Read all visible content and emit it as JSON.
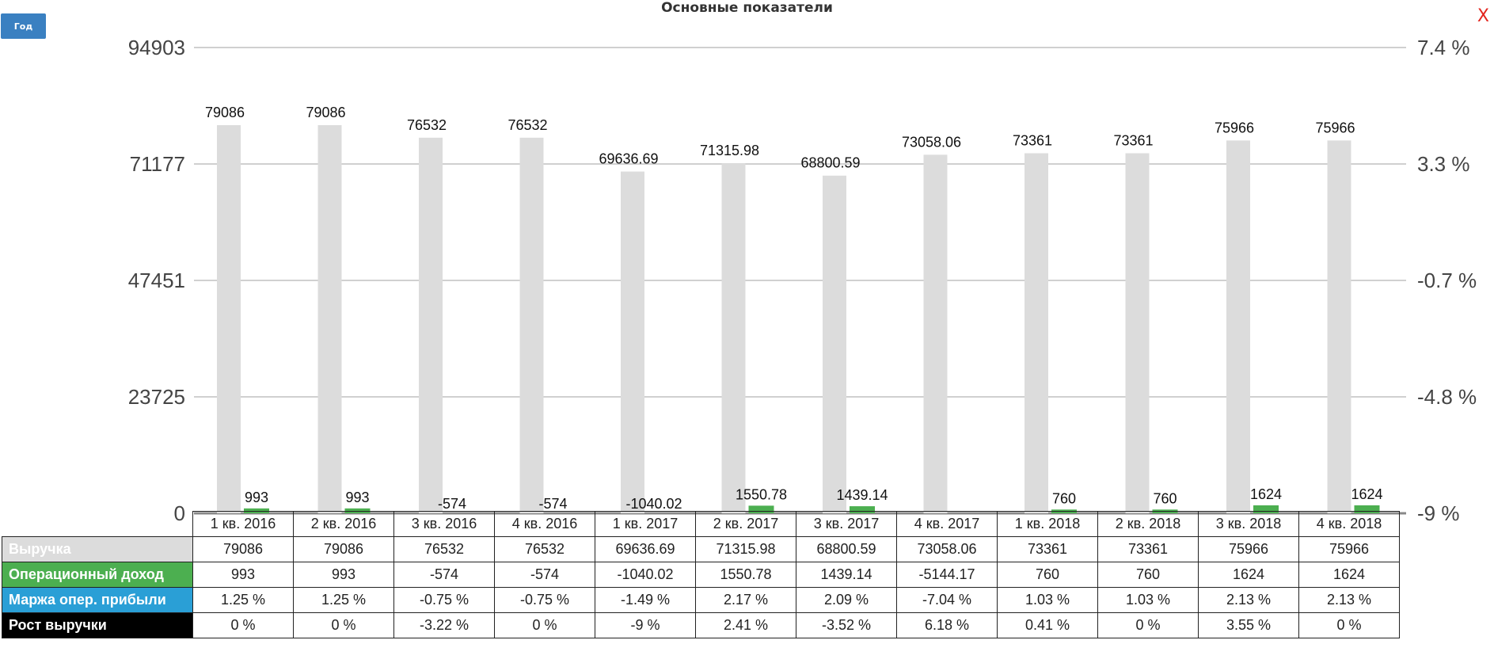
{
  "header": {
    "year_button": "Год",
    "title": "Основные показатели",
    "close": "X"
  },
  "chart_data": {
    "type": "bar",
    "title": "Основные показатели",
    "categories": [
      "1 кв. 2016",
      "2 кв. 2016",
      "3 кв. 2016",
      "4 кв. 2016",
      "1 кв. 2017",
      "2 кв. 2017",
      "3 кв. 2017",
      "4 кв. 2017",
      "1 кв. 2018",
      "2 кв. 2018",
      "3 кв. 2018",
      "4 кв. 2018"
    ],
    "left_axis": {
      "ticks": [
        "94903",
        "71177",
        "47451",
        "23725",
        "0"
      ],
      "range": [
        0,
        94903
      ]
    },
    "right_axis": {
      "ticks": [
        "7.4 %",
        "3.3 %",
        "-0.7 %",
        "-4.8 %",
        "-9 %"
      ],
      "range": [
        -9,
        7.4
      ]
    },
    "grid": true,
    "series": [
      {
        "name": "Выручка",
        "kind": "bar",
        "axis": "left",
        "color": "#dcdcdc",
        "values": [
          79086,
          79086,
          76532,
          76532,
          69636.69,
          71315.98,
          68800.59,
          73058.06,
          73361,
          73361,
          75966,
          75966
        ],
        "labels": [
          "79086",
          "79086",
          "76532",
          "76532",
          "69636.69",
          "71315.98",
          "68800.59",
          "73058.06",
          "73361",
          "73361",
          "75966",
          "75966"
        ]
      },
      {
        "name": "Операционный доход",
        "kind": "bar",
        "axis": "left",
        "color": "#4caf50",
        "values": [
          993,
          993,
          -574,
          -574,
          -1040.02,
          1550.78,
          1439.14,
          -5144.17,
          760,
          760,
          1624,
          1624
        ],
        "labels": [
          "993",
          "993",
          "-574",
          "-574",
          "-1040.02",
          "1550.78",
          "1439.14",
          "",
          "760",
          "760",
          "1624",
          "1624"
        ]
      },
      {
        "name": "Маржа опер. прибыли",
        "kind": "table",
        "axis": "right",
        "color": "#2a9fd6",
        "values": [
          1.25,
          1.25,
          -0.75,
          -0.75,
          -1.49,
          2.17,
          2.09,
          -7.04,
          1.03,
          1.03,
          2.13,
          2.13
        ]
      },
      {
        "name": "Рост выручки",
        "kind": "table",
        "axis": "right",
        "color": "#000000",
        "values": [
          0,
          0,
          -3.22,
          0,
          -9,
          2.41,
          -3.52,
          6.18,
          0.41,
          0,
          3.55,
          0
        ]
      }
    ]
  },
  "table": {
    "rows": [
      {
        "label": "Выручка",
        "bg": "#dcdcdc",
        "fg": "#ffffff",
        "cells": [
          "79086",
          "79086",
          "76532",
          "76532",
          "69636.69",
          "71315.98",
          "68800.59",
          "73058.06",
          "73361",
          "73361",
          "75966",
          "75966"
        ]
      },
      {
        "label": "Операционный доход",
        "bg": "#4caf50",
        "fg": "#ffffff",
        "cells": [
          "993",
          "993",
          "-574",
          "-574",
          "-1040.02",
          "1550.78",
          "1439.14",
          "-5144.17",
          "760",
          "760",
          "1624",
          "1624"
        ]
      },
      {
        "label": "Маржа опер. прибыли",
        "bg": "#2a9fd6",
        "fg": "#ffffff",
        "cells": [
          "1.25 %",
          "1.25 %",
          "-0.75 %",
          "-0.75 %",
          "-1.49 %",
          "2.17 %",
          "2.09 %",
          "-7.04 %",
          "1.03 %",
          "1.03 %",
          "2.13 %",
          "2.13 %"
        ]
      },
      {
        "label": "Рост выручки",
        "bg": "#000000",
        "fg": "#ffffff",
        "cells": [
          "0 %",
          "0 %",
          "-3.22 %",
          "0 %",
          "-9 %",
          "2.41 %",
          "-3.52 %",
          "6.18 %",
          "0.41 %",
          "0 %",
          "3.55 %",
          "0 %"
        ]
      }
    ]
  }
}
